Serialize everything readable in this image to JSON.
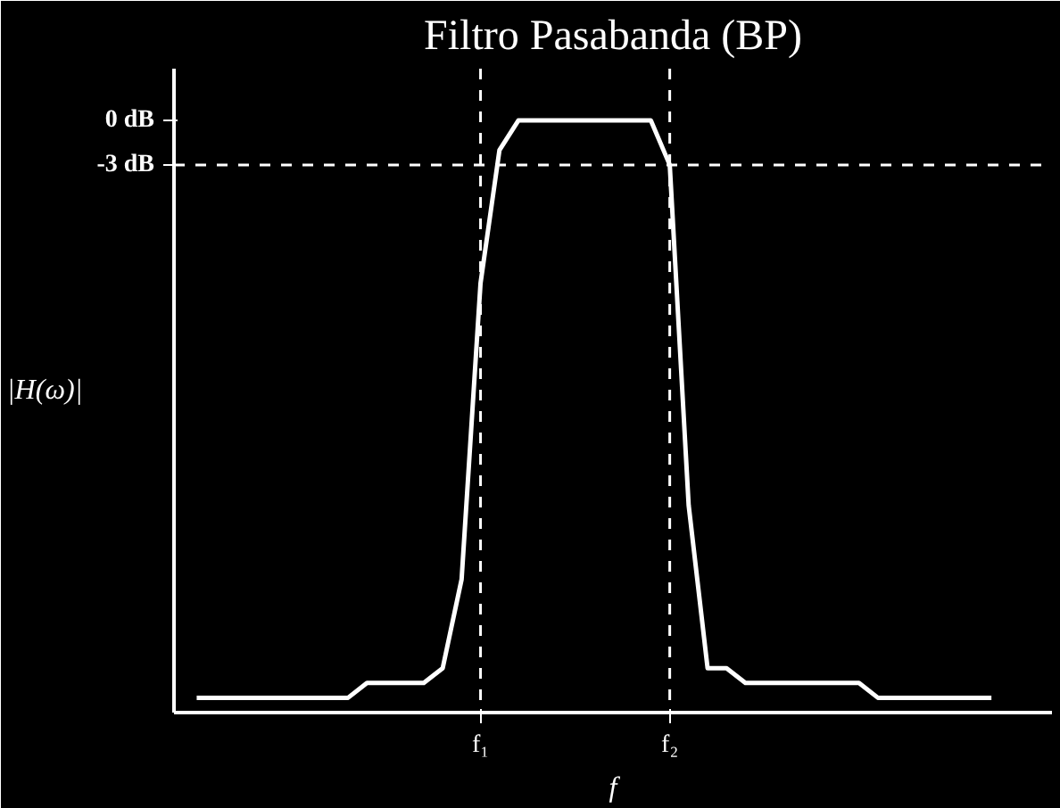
{
  "chart_data": {
    "type": "line",
    "title": "Filtro Pasabanda (BP)",
    "xlabel": "f",
    "ylabel": "|H(ω)|",
    "categories": [
      null,
      null,
      null,
      null,
      null,
      null,
      null,
      null,
      null,
      null,
      null,
      null,
      null,
      null,
      null,
      "f₁",
      null,
      null,
      null,
      null,
      null,
      null,
      null,
      null,
      null,
      "f₂",
      null,
      null,
      null,
      null,
      null,
      null,
      null,
      null,
      null,
      null,
      null,
      null,
      null,
      null,
      null,
      null,
      null,
      null,
      null,
      null
    ],
    "series": [
      {
        "color": "#ffffff",
        "values": [
          -39,
          -39,
          -39,
          -39,
          -39,
          -39,
          -39,
          -39,
          -39,
          -38,
          -38,
          -38,
          -38,
          -37,
          -31,
          -11,
          -2,
          0,
          0,
          0,
          0,
          0,
          0,
          0,
          0,
          -3,
          -26,
          -37,
          -37,
          -38,
          -38,
          -38,
          -38,
          -38,
          -38,
          -38,
          -39,
          -39,
          -39,
          -39,
          -39,
          -39,
          -39,
          null,
          null,
          null
        ]
      }
    ],
    "ylim": [
      -40,
      3.5
    ],
    "yticks": [
      {
        "value": 0,
        "label": "0 dB"
      },
      {
        "value": -3,
        "label": "-3 dB"
      }
    ],
    "ref_lines": [
      {
        "axis": "y",
        "value": -3,
        "color": "#ffffff",
        "line_style": "dashed"
      },
      {
        "axis": "x",
        "value": "f₁",
        "color": "#ffffff",
        "line_style": "dashed"
      },
      {
        "axis": "x",
        "value": "f₂",
        "color": "#ffffff",
        "line_style": "dashed"
      }
    ],
    "grid": false,
    "line_style": "solid"
  }
}
